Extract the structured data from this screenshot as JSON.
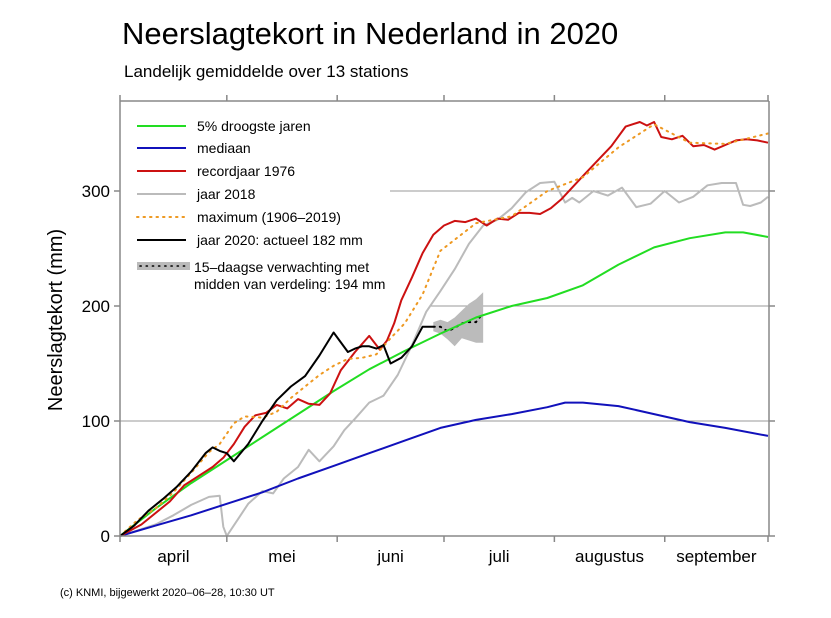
{
  "chart_data": {
    "type": "line",
    "title": "Neerslagtekort in Nederland in 2020",
    "subtitle": "Landelijk gemiddelde over 13 stations",
    "xlabel": "",
    "ylabel": "Neerslagtekort (mm)",
    "ylim": [
      0,
      370
    ],
    "xlim_days_since_apr1": [
      0,
      182
    ],
    "yticks": [
      0,
      100,
      200,
      300
    ],
    "month_ticks_days": [
      0,
      30,
      61,
      91,
      122,
      153,
      182
    ],
    "month_labels": [
      {
        "label": "april",
        "day": 15
      },
      {
        "label": "mei",
        "day": 45.5
      },
      {
        "label": "juni",
        "day": 76
      },
      {
        "label": "juli",
        "day": 106.5
      },
      {
        "label": "augustus",
        "day": 137.5
      },
      {
        "label": "september",
        "day": 167.5
      }
    ],
    "grid": "horizontal",
    "legend_position": "top-left",
    "series": [
      {
        "name": "5% droogste jaren",
        "color": "#22dd22",
        "style": "solid",
        "x": [
          0,
          10,
          20,
          30,
          40,
          50,
          60,
          70,
          80,
          90,
          100,
          110,
          120,
          130,
          140,
          150,
          160,
          170,
          175,
          182
        ],
        "y": [
          0,
          24,
          46,
          66,
          86,
          106,
          126,
          145,
          161,
          176,
          190,
          200,
          207,
          218,
          236,
          251,
          259,
          264,
          264,
          260
        ]
      },
      {
        "name": "mediaan",
        "color": "#1111bb",
        "style": "solid",
        "x": [
          0,
          10,
          20,
          30,
          40,
          50,
          60,
          70,
          80,
          90,
          100,
          110,
          120,
          125,
          130,
          140,
          150,
          160,
          170,
          182
        ],
        "y": [
          0,
          9,
          18,
          28,
          38,
          50,
          61,
          72,
          83,
          94,
          101,
          106,
          112,
          116,
          116,
          113,
          106,
          99,
          94,
          87
        ]
      },
      {
        "name": "recordjaar 1976",
        "color": "#cc1111",
        "style": "solid",
        "x": [
          0,
          3,
          6,
          10,
          14,
          18,
          22,
          26,
          29,
          32,
          35,
          38,
          41,
          44,
          47,
          50,
          53,
          56,
          59,
          62,
          66,
          70,
          73,
          75,
          77,
          79,
          82,
          85,
          88,
          91,
          94,
          97,
          100,
          103,
          106,
          109,
          112,
          115,
          118,
          121,
          124,
          127,
          130,
          134,
          138,
          142,
          146,
          148,
          150,
          152,
          155,
          158,
          161,
          164,
          167,
          170,
          173,
          176,
          179,
          182
        ],
        "y": [
          0,
          5,
          10,
          20,
          30,
          44,
          52,
          60,
          68,
          80,
          95,
          105,
          107,
          114,
          111,
          119,
          115,
          114,
          124,
          144,
          160,
          174,
          162,
          170,
          185,
          205,
          225,
          246,
          262,
          270,
          274,
          273,
          276,
          270,
          276,
          275,
          281,
          281,
          280,
          285,
          293,
          303,
          313,
          326,
          339,
          356,
          360,
          357,
          360,
          347,
          345,
          348,
          339,
          340,
          336,
          340,
          344,
          345,
          344,
          342
        ]
      },
      {
        "name": "jaar 2018",
        "color": "#bbbbbb",
        "style": "solid",
        "x": [
          0,
          5,
          10,
          15,
          20,
          25,
          28,
          29,
          30,
          33,
          36,
          40,
          43,
          46,
          50,
          53,
          56,
          60,
          63,
          66,
          70,
          74,
          78,
          82,
          86,
          90,
          94,
          98,
          102,
          106,
          110,
          114,
          118,
          122,
          125,
          127,
          129,
          133,
          137,
          141,
          145,
          149,
          153,
          157,
          161,
          165,
          169,
          173,
          175,
          177,
          180,
          182
        ],
        "y": [
          0,
          5,
          10,
          18,
          27,
          34,
          35,
          8,
          0,
          14,
          28,
          39,
          37,
          50,
          60,
          75,
          65,
          78,
          92,
          102,
          116,
          122,
          140,
          166,
          195,
          213,
          232,
          254,
          270,
          275,
          285,
          299,
          307,
          308,
          290,
          294,
          290,
          300,
          296,
          303,
          286,
          289,
          300,
          290,
          295,
          305,
          307,
          307,
          288,
          287,
          290,
          295
        ]
      },
      {
        "name": "maximum (1906–2019)",
        "color": "#ee9922",
        "style": "dotted",
        "x": [
          0,
          5,
          10,
          15,
          20,
          25,
          28,
          32,
          35,
          40,
          44,
          48,
          52,
          56,
          60,
          64,
          68,
          72,
          76,
          80,
          85,
          90,
          100,
          110,
          120,
          130,
          140,
          150,
          160,
          170,
          182
        ],
        "y": [
          0,
          14,
          24,
          38,
          55,
          73,
          80,
          98,
          104,
          103,
          108,
          120,
          130,
          140,
          148,
          154,
          155,
          158,
          172,
          185,
          210,
          248,
          272,
          278,
          300,
          312,
          338,
          358,
          342,
          341,
          350
        ]
      },
      {
        "name": "jaar 2020: actueel 182 mm",
        "color": "#000000",
        "style": "solid",
        "x": [
          0,
          4,
          8,
          12,
          16,
          20,
          24,
          26,
          28,
          30,
          32,
          36,
          40,
          44,
          48,
          52,
          56,
          60,
          64,
          66,
          68,
          70,
          72,
          74,
          76,
          79,
          82,
          85,
          86,
          88
        ],
        "y": [
          0,
          9,
          22,
          32,
          43,
          56,
          72,
          77,
          74,
          72,
          65,
          80,
          100,
          118,
          130,
          139,
          157,
          177,
          160,
          163,
          165,
          165,
          163,
          166,
          150,
          155,
          165,
          182,
          182,
          182
        ]
      }
    ],
    "forecast": {
      "name": "15–daagse verwachting met midden van verdeling: 194 mm",
      "color": "#bbbbbb",
      "x": [
        88,
        90,
        92,
        94,
        96,
        98,
        100,
        102
      ],
      "median": [
        182,
        182,
        178,
        181,
        185,
        186,
        186,
        194
      ],
      "upper": [
        186,
        188,
        186,
        190,
        196,
        202,
        206,
        212
      ],
      "lower": [
        178,
        176,
        171,
        165,
        172,
        170,
        168,
        168
      ]
    },
    "credit": "(c) KNMI, bijgewerkt 2020–06–28, 10:30 UT"
  }
}
